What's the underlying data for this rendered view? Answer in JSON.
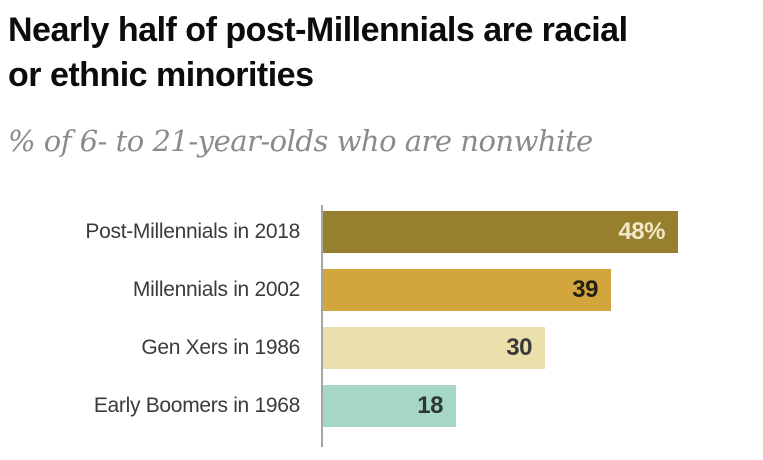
{
  "header": {
    "title_line1": "Nearly half of post-Millennials are racial",
    "title_line2": "or ethnic minorities",
    "subtitle": "% of 6- to 21-year-olds who are nonwhite"
  },
  "chart_data": {
    "type": "bar",
    "orientation": "horizontal",
    "title": "Nearly half of post-Millennials are racial or ethnic minorities",
    "subtitle": "% of 6- to 21-year-olds who are nonwhite",
    "categories": [
      "Post-Millennials in 2018",
      "Millennials in 2002",
      "Gen Xers in 1986",
      "Early Boomers in 1968"
    ],
    "values": [
      48,
      39,
      30,
      18
    ],
    "value_labels": [
      "48%",
      "39",
      "30",
      "18"
    ],
    "bar_colors": [
      "#96802E",
      "#D2A63C",
      "#EBDFAC",
      "#A5D6C6"
    ],
    "value_label_colors": [
      "#F1E8C8",
      "#221F14",
      "#3A3A3A",
      "#2E3733"
    ],
    "xlabel": "",
    "ylabel": "",
    "xlim": [
      0,
      48
    ],
    "grid": false,
    "legend_position": "none",
    "axis_line_color": "#A6A6A6",
    "background_color": "#FFFFFF"
  }
}
